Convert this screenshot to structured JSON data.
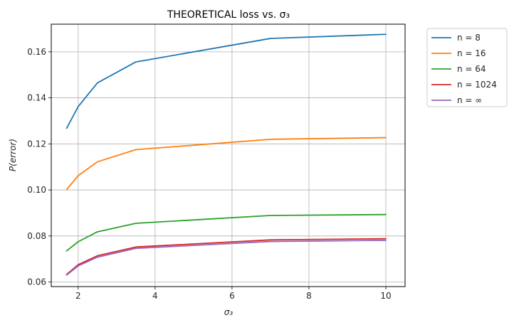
{
  "chart_data": {
    "type": "line",
    "title": "THEORETICAL loss vs. σ₃",
    "xlabel": "σ₃",
    "ylabel": "P(error)",
    "xlim": [
      1.3,
      10.5
    ],
    "ylim": [
      0.058,
      0.172
    ],
    "xticks": [
      2,
      4,
      6,
      8,
      10
    ],
    "yticks": [
      0.06,
      0.08,
      0.1,
      0.12,
      0.14,
      0.16
    ],
    "grid": true,
    "legend_position": "outside-right",
    "x": [
      1.7,
      2.0,
      2.5,
      3.5,
      7.0,
      10.0
    ],
    "series": [
      {
        "name": "n = 8",
        "color": "#1f77b4",
        "values": [
          0.1268,
          0.1362,
          0.1465,
          0.1556,
          0.1658,
          0.1676
        ]
      },
      {
        "name": "n = 16",
        "color": "#ff7f0e",
        "values": [
          0.1001,
          0.1062,
          0.1122,
          0.1175,
          0.122,
          0.1227
        ]
      },
      {
        "name": "n = 64",
        "color": "#2ca02c",
        "values": [
          0.0735,
          0.0775,
          0.0818,
          0.0855,
          0.0889,
          0.0893
        ]
      },
      {
        "name": "n = 1024",
        "color": "#d62728",
        "values": [
          0.0633,
          0.0675,
          0.0714,
          0.0752,
          0.0783,
          0.0788
        ]
      },
      {
        "name": "n = ∞",
        "color": "#9467bd",
        "values": [
          0.063,
          0.067,
          0.0708,
          0.0746,
          0.0776,
          0.0781
        ]
      }
    ]
  }
}
